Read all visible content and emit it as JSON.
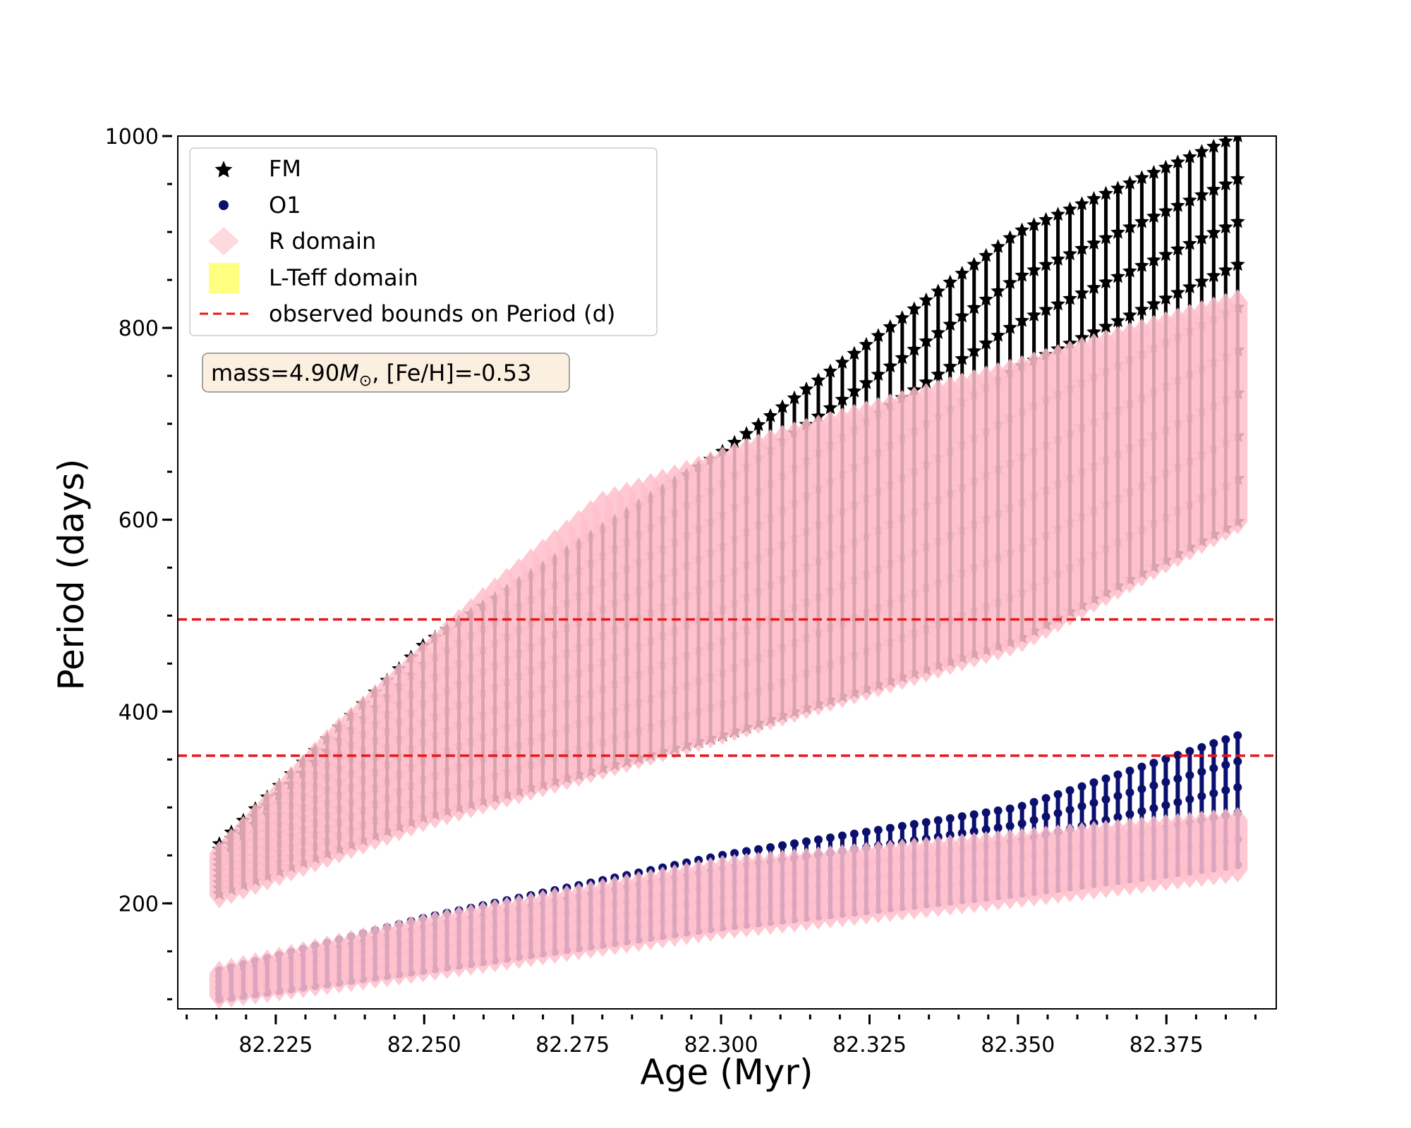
{
  "chart_data": {
    "type": "scatter",
    "xlabel": "Age (Myr)",
    "ylabel": "Period (days)",
    "xlim": [
      82.2085,
      82.3935
    ],
    "ylim": [
      90,
      1000
    ],
    "x_ticks": [
      82.225,
      82.25,
      82.275,
      82.3,
      82.325,
      82.35,
      82.375
    ],
    "x_tick_labels": [
      "82.225",
      "82.250",
      "82.275",
      "82.300",
      "82.325",
      "82.350",
      "82.375"
    ],
    "x_minor_step": 0.005,
    "y_ticks": [
      200,
      400,
      600,
      800,
      1000
    ],
    "y_tick_labels": [
      "200",
      "400",
      "600",
      "800",
      "1000"
    ],
    "y_minor_step": 50,
    "grid": false,
    "legend": {
      "placement": "upper-left",
      "entries": [
        {
          "label": "FM",
          "marker": "star",
          "color": "#000000"
        },
        {
          "label": "O1",
          "marker": "circle",
          "color": "#0b0f6e"
        },
        {
          "label": "R domain",
          "marker": "diamond",
          "color": "#ffc0cb"
        },
        {
          "label": "L-Teff domain",
          "marker": "square",
          "color": "#ffff80"
        },
        {
          "label": "observed bounds on Period (d)",
          "marker": "dashed-line",
          "color": "#e8161b"
        }
      ]
    },
    "annotation": {
      "prefix": "mass=4.90",
      "symbol": "M",
      "subscript": "⊙",
      "suffix": ", [Fe/H]=-0.53"
    },
    "observed_bounds": [
      496,
      354
    ],
    "series": [
      {
        "name": "FM",
        "marker": "star",
        "color": "#000000",
        "x_start": 82.2155,
        "x_end": 82.387,
        "tracks": 86,
        "lower_at_x": [
          [
            82.2155,
            210
          ],
          [
            82.25,
            290
          ],
          [
            82.3,
            375
          ],
          [
            82.35,
            475
          ],
          [
            82.387,
            598
          ]
        ],
        "upper_at_x": [
          [
            82.2155,
            262
          ],
          [
            82.25,
            470
          ],
          [
            82.3,
            670
          ],
          [
            82.35,
            900
          ],
          [
            82.387,
            1000
          ]
        ]
      },
      {
        "name": "O1",
        "marker": "circle",
        "color": "#0b0f6e",
        "x_start": 82.2155,
        "x_end": 82.387,
        "tracks": 86,
        "lower_at_x": [
          [
            82.2155,
            100
          ],
          [
            82.25,
            130
          ],
          [
            82.3,
            175
          ],
          [
            82.35,
            210
          ],
          [
            82.387,
            240
          ]
        ],
        "upper_at_x": [
          [
            82.2155,
            130
          ],
          [
            82.25,
            185
          ],
          [
            82.3,
            250
          ],
          [
            82.35,
            300
          ],
          [
            82.387,
            375
          ]
        ]
      },
      {
        "name": "R domain",
        "marker": "diamond",
        "color": "#ffc0cb",
        "regions": [
          {
            "lower_at_x": [
              [
                82.2155,
                205
              ],
              [
                82.25,
                285
              ],
              [
                82.3,
                375
              ],
              [
                82.35,
                470
              ],
              [
                82.387,
                595
              ]
            ],
            "upper_at_x": [
              [
                82.2155,
                255
              ],
              [
                82.235,
                380
              ],
              [
                82.26,
                520
              ],
              [
                82.28,
                620
              ],
              [
                82.31,
                688
              ],
              [
                82.35,
                760
              ],
              [
                82.387,
                830
              ]
            ]
          },
          {
            "lower_at_x": [
              [
                82.2155,
                100
              ],
              [
                82.25,
                128
              ],
              [
                82.3,
                172
              ],
              [
                82.35,
                205
              ],
              [
                82.387,
                232
              ]
            ],
            "upper_at_x": [
              [
                82.2155,
                130
              ],
              [
                82.25,
                180
              ],
              [
                82.3,
                240
              ],
              [
                82.35,
                268
              ],
              [
                82.387,
                290
              ]
            ]
          }
        ]
      },
      {
        "name": "L-Teff domain",
        "marker": "square",
        "color": "#ffff80",
        "regions": []
      }
    ]
  }
}
